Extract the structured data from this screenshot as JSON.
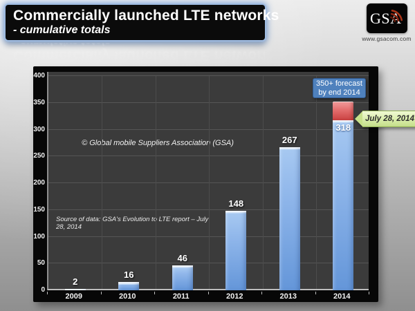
{
  "header": {
    "title": "Commercially launched LTE networks",
    "subtitle": "- cumulative totals"
  },
  "logo": {
    "text": "GSA",
    "url": "www.gsacom.com"
  },
  "annotations": {
    "copyright": "© Global mobile Suppliers Association (GSA)",
    "source": "Source of data: GSA's Evolution to LTE report – July 28, 2014",
    "forecast_label": {
      "line1": "350+ forecast",
      "line2": "by end 2014"
    },
    "date_callout": "July 28, 2014"
  },
  "chart_data": {
    "type": "bar",
    "title": "Commercially launched LTE networks - cumulative totals",
    "categories": [
      "2009",
      "2010",
      "2011",
      "2012",
      "2013",
      "2014"
    ],
    "values": [
      2,
      16,
      46,
      148,
      267,
      318
    ],
    "data_labels": [
      "2",
      "16",
      "46",
      "148",
      "267",
      "318"
    ],
    "forecast_segment": {
      "category": "2014",
      "from": 318,
      "to": 353,
      "label": "350+ forecast by end 2014"
    },
    "xlabel": "",
    "ylabel": "",
    "ylim": [
      0,
      400
    ],
    "yticks": [
      0,
      50,
      100,
      150,
      200,
      250,
      300,
      350,
      400
    ],
    "grid": true,
    "legend": false,
    "colors": {
      "bar": "#6f9cdc",
      "bar_highlight": "#d6e6f9",
      "forecast": "#d9534f",
      "plot_bg": "#3b3b3b",
      "gridline": "#565656",
      "frame_bg": "#070707",
      "callout_blue": "#4f81bd",
      "callout_green": "#d9edaa"
    }
  }
}
